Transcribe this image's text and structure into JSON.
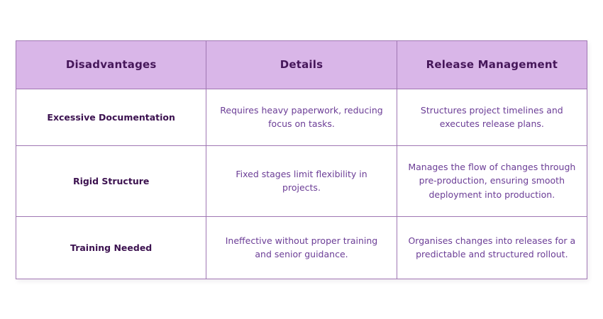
{
  "chart_data": {
    "type": "table",
    "title": "",
    "columns": [
      "Disadvantages",
      "Details",
      "Release Management"
    ],
    "rows": [
      [
        "Excessive Documentation",
        "Requires heavy paperwork, reducing focus on tasks.",
        "Structures project timelines and executes release plans."
      ],
      [
        "Rigid Structure",
        "Fixed stages limit flexibility in projects.",
        "Manages the flow of changes through pre-production, ensuring smooth deployment into production."
      ],
      [
        "Training Needed",
        "Ineffective without proper training and senior guidance.",
        "Organises changes into releases for a predictable and structured rollout."
      ]
    ],
    "layout_hints": {
      "column_count": 3,
      "equal_column_widths": true,
      "header_row": true
    }
  },
  "colors": {
    "header_background": "#d9b6e8",
    "outer_border": "#8d5a9e",
    "grid_border": "#a077b3",
    "header_text": "#46175a",
    "row_label_text": "#3c1250",
    "body_text": "#6b3d96",
    "cell_background": "#ffffff",
    "page_background": "#ffffff"
  }
}
